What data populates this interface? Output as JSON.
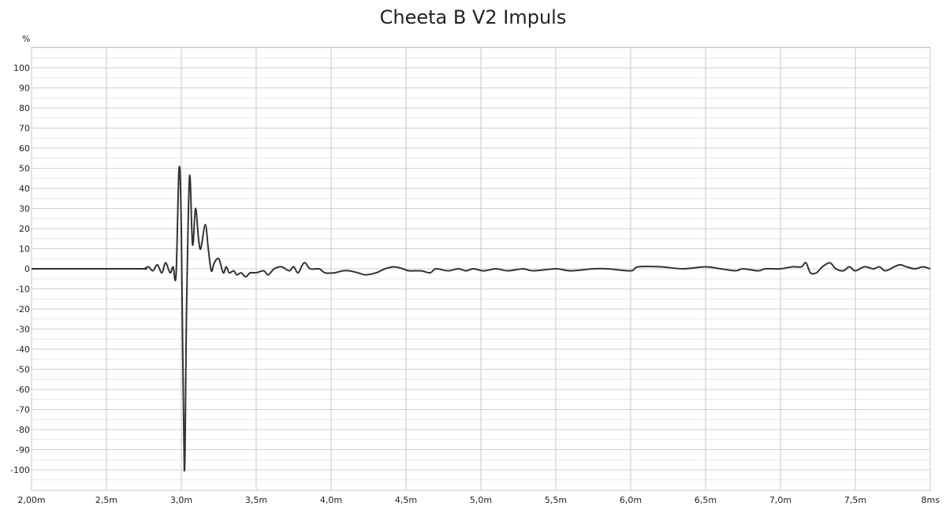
{
  "chart_data": {
    "type": "line",
    "title": "Cheeta B V2 Impuls",
    "y_unit": "%",
    "xlim": [
      2.0,
      8.0
    ],
    "ylim": [
      -100,
      110
    ],
    "grid": true,
    "x_ticks": [
      {
        "value": 2.0,
        "label": "2,00m"
      },
      {
        "value": 2.5,
        "label": "2,5m"
      },
      {
        "value": 3.0,
        "label": "3,0m"
      },
      {
        "value": 3.5,
        "label": "3,5m"
      },
      {
        "value": 4.0,
        "label": "4,0m"
      },
      {
        "value": 4.5,
        "label": "4,5m"
      },
      {
        "value": 5.0,
        "label": "5,0m"
      },
      {
        "value": 5.5,
        "label": "5,5m"
      },
      {
        "value": 6.0,
        "label": "6,0m"
      },
      {
        "value": 6.5,
        "label": "6,5m"
      },
      {
        "value": 7.0,
        "label": "7,0m"
      },
      {
        "value": 7.5,
        "label": "7,5m"
      },
      {
        "value": 8.0,
        "label": "8ms"
      }
    ],
    "y_ticks": [
      {
        "value": 100,
        "label": "100"
      },
      {
        "value": 90,
        "label": "90"
      },
      {
        "value": 80,
        "label": "80"
      },
      {
        "value": 70,
        "label": "70"
      },
      {
        "value": 60,
        "label": "60"
      },
      {
        "value": 50,
        "label": "50"
      },
      {
        "value": 40,
        "label": "40"
      },
      {
        "value": 30,
        "label": "30"
      },
      {
        "value": 20,
        "label": "20"
      },
      {
        "value": 10,
        "label": "10"
      },
      {
        "value": 0,
        "label": "0"
      },
      {
        "value": -10,
        "label": "-10"
      },
      {
        "value": -20,
        "label": "-20"
      },
      {
        "value": -30,
        "label": "-30"
      },
      {
        "value": -40,
        "label": "-40"
      },
      {
        "value": -50,
        "label": "-50"
      },
      {
        "value": -60,
        "label": "-60"
      },
      {
        "value": -70,
        "label": "-70"
      },
      {
        "value": -80,
        "label": "-80"
      },
      {
        "value": -90,
        "label": "-90"
      },
      {
        "value": -100,
        "label": "-100"
      }
    ],
    "series": [
      {
        "color": "#333333",
        "points": [
          [
            2.0,
            0
          ],
          [
            2.7,
            0
          ],
          [
            2.75,
            0
          ],
          [
            2.78,
            1
          ],
          [
            2.81,
            -1
          ],
          [
            2.84,
            2
          ],
          [
            2.87,
            -2
          ],
          [
            2.895,
            3
          ],
          [
            2.925,
            -2
          ],
          [
            2.945,
            1
          ],
          [
            2.965,
            -3
          ],
          [
            2.985,
            50
          ],
          [
            3.0,
            20
          ],
          [
            3.02,
            -100
          ],
          [
            3.035,
            -20
          ],
          [
            3.055,
            46
          ],
          [
            3.075,
            12
          ],
          [
            3.095,
            30
          ],
          [
            3.115,
            15
          ],
          [
            3.13,
            10
          ],
          [
            3.16,
            22
          ],
          [
            3.18,
            10
          ],
          [
            3.2,
            -1
          ],
          [
            3.22,
            3
          ],
          [
            3.25,
            5
          ],
          [
            3.28,
            -2
          ],
          [
            3.3,
            1
          ],
          [
            3.32,
            -2
          ],
          [
            3.35,
            -1
          ],
          [
            3.37,
            -3
          ],
          [
            3.4,
            -2
          ],
          [
            3.43,
            -4
          ],
          [
            3.46,
            -2
          ],
          [
            3.5,
            -2
          ],
          [
            3.55,
            -1
          ],
          [
            3.58,
            -3
          ],
          [
            3.62,
            0
          ],
          [
            3.67,
            1
          ],
          [
            3.72,
            -1
          ],
          [
            3.75,
            1
          ],
          [
            3.78,
            -2
          ],
          [
            3.82,
            3
          ],
          [
            3.86,
            0
          ],
          [
            3.92,
            0
          ],
          [
            3.96,
            -2
          ],
          [
            4.02,
            -2
          ],
          [
            4.08,
            -1
          ],
          [
            4.12,
            -1
          ],
          [
            4.18,
            -2
          ],
          [
            4.23,
            -3
          ],
          [
            4.3,
            -2
          ],
          [
            4.36,
            0
          ],
          [
            4.42,
            1
          ],
          [
            4.48,
            0
          ],
          [
            4.52,
            -1
          ],
          [
            4.6,
            -1
          ],
          [
            4.66,
            -2
          ],
          [
            4.7,
            0
          ],
          [
            4.78,
            -1
          ],
          [
            4.85,
            0
          ],
          [
            4.9,
            -1
          ],
          [
            4.95,
            0
          ],
          [
            5.02,
            -1
          ],
          [
            5.1,
            0
          ],
          [
            5.18,
            -1
          ],
          [
            5.28,
            0
          ],
          [
            5.35,
            -1
          ],
          [
            5.5,
            0
          ],
          [
            5.6,
            -1
          ],
          [
            5.75,
            0
          ],
          [
            5.85,
            0
          ],
          [
            6.0,
            -1
          ],
          [
            6.05,
            1
          ],
          [
            6.2,
            1
          ],
          [
            6.35,
            0
          ],
          [
            6.5,
            1
          ],
          [
            6.6,
            0
          ],
          [
            6.7,
            -1
          ],
          [
            6.75,
            0
          ],
          [
            6.85,
            -1
          ],
          [
            6.9,
            0
          ],
          [
            7.0,
            0
          ],
          [
            7.08,
            1
          ],
          [
            7.14,
            1
          ],
          [
            7.17,
            3
          ],
          [
            7.2,
            -2
          ],
          [
            7.24,
            -2
          ],
          [
            7.28,
            1
          ],
          [
            7.33,
            3
          ],
          [
            7.37,
            0
          ],
          [
            7.42,
            -1
          ],
          [
            7.46,
            1
          ],
          [
            7.5,
            -1
          ],
          [
            7.56,
            1
          ],
          [
            7.62,
            0
          ],
          [
            7.66,
            1
          ],
          [
            7.7,
            -1
          ],
          [
            7.76,
            1
          ],
          [
            7.8,
            2
          ],
          [
            7.84,
            1
          ],
          [
            7.9,
            0
          ],
          [
            7.95,
            1
          ],
          [
            8.0,
            0
          ]
        ]
      }
    ]
  }
}
